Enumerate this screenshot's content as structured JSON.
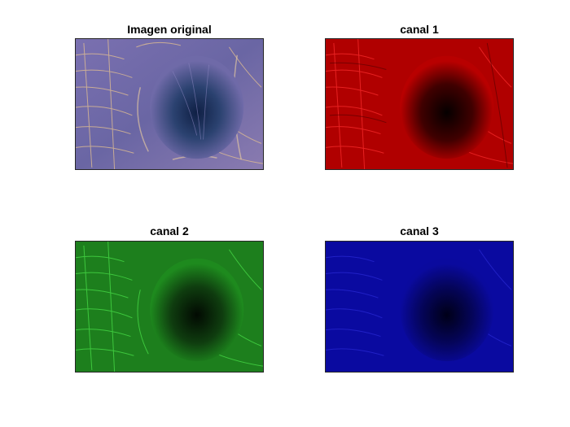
{
  "figure": {
    "panels": [
      {
        "title": "Imagen original",
        "image_subject": "sem-cavity-image",
        "channel": "original"
      },
      {
        "title": "canal 1",
        "image_subject": "sem-cavity-image",
        "channel": "red"
      },
      {
        "title": "canal 2",
        "image_subject": "sem-cavity-image",
        "channel": "green"
      },
      {
        "title": "canal 3",
        "image_subject": "sem-cavity-image",
        "channel": "blue"
      }
    ],
    "colors": {
      "original_base": "#6f6aa8",
      "original_highlight": "#e9c48e",
      "original_pit": "#1c2f5c",
      "red_base": "#c00000",
      "red_highlight": "#ff2a2a",
      "green_base": "#1e8a1e",
      "green_highlight": "#45e045",
      "blue_base": "#0a0a9e",
      "blue_highlight": "#2a2ae0"
    }
  }
}
